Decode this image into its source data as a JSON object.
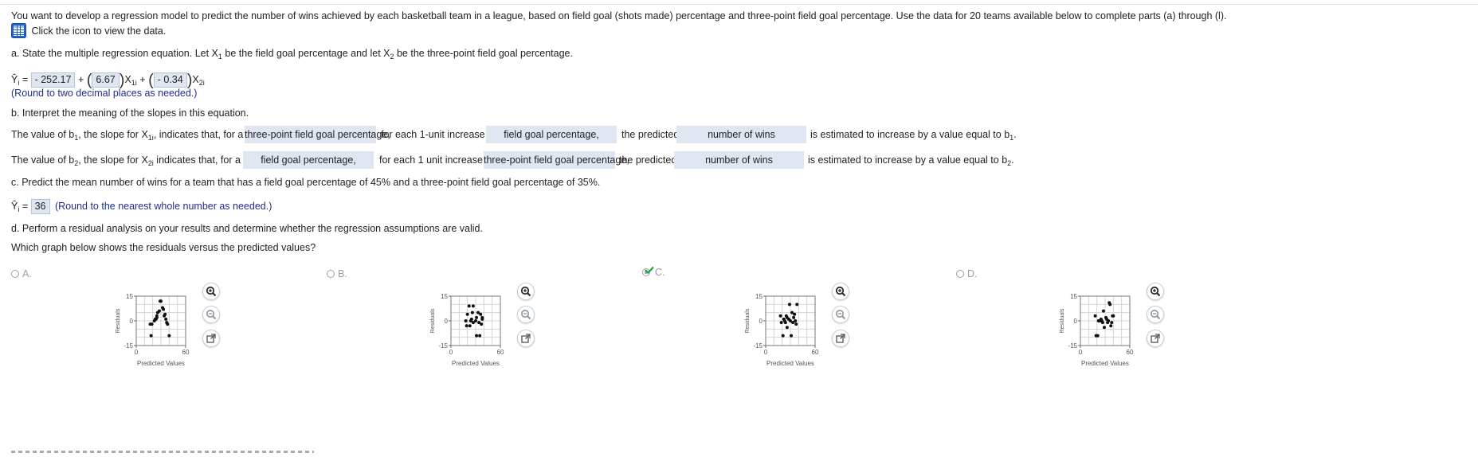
{
  "problem": {
    "intro": "You want to develop a regression model to predict the number of wins achieved by each basketball team in a league, based on field goal (shots made) percentage and three-point field goal percentage. Use the data for 20 teams available below to complete parts (a) through (l).",
    "data_link": "Click the icon to view the data."
  },
  "part_a": {
    "prompt_pre": "a. State the multiple regression equation. Let X",
    "prompt_mid": " be the field goal percentage and let X",
    "prompt_post": " be the three-point field goal percentage.",
    "sub1": "1",
    "sub2": "2",
    "eq_lhs": "Ŷ",
    "eq_i": "i",
    "eq_eq": " = ",
    "b0": "- 252.17",
    "b1": "6.67",
    "b2": "- 0.34",
    "x1": "X",
    "x1_sub": "1i",
    "x2": "X",
    "x2_sub": "2i",
    "plus": "+",
    "round_note": "(Round to two decimal places as needed.)"
  },
  "part_b": {
    "prompt": "b. Interpret the meaning of the slopes in this equation.",
    "row1": {
      "t1": "The value of b",
      "t1_sub": "1",
      "t2": ", the slope for X",
      "t2_sub": "1i",
      "t3": ", indicates that, for a given",
      "dd1": "three-point field goal percentage,",
      "t4": "for each 1-unit increase in",
      "dd2": "field goal percentage,",
      "t5": "the predicted",
      "dd3": "number of wins",
      "t6": "is estimated to increase by a value equal to b",
      "t6_sub": "1",
      "t7": "."
    },
    "row2": {
      "t1": "The value of b",
      "t1_sub": "2",
      "t2": ", the slope for X",
      "t2_sub": "2i",
      "t3": " indicates that, for a given",
      "dd1": "field goal percentage,",
      "t4": "for each 1 unit increase in",
      "dd2": "three-point field goal percentage,",
      "t5": "the predicted",
      "dd3": "number of wins",
      "t6": "is estimated to increase by a value equal to b",
      "t6_sub": "2",
      "t7": "."
    }
  },
  "part_c": {
    "prompt": "c. Predict the mean number of wins for a team that has a field goal percentage of 45% and a three-point field goal percentage of 35%.",
    "lhs": "Ŷ",
    "lhs_sub": "i",
    "eq": " = ",
    "answer": "36",
    "note": "(Round to the nearest whole number as needed.)"
  },
  "part_d": {
    "prompt": "d. Perform a residual analysis on your results and determine whether the regression assumptions are valid.",
    "question": "Which graph below shows the residuals versus the predicted values?",
    "selected": "C",
    "options": [
      {
        "label": "A."
      },
      {
        "label": "B."
      },
      {
        "label": "C."
      },
      {
        "label": "D."
      }
    ]
  },
  "chart_data": [
    {
      "type": "scatter",
      "option": "A",
      "xlabel": "Predicted Values",
      "ylabel": "Residuals",
      "xlim": [
        0,
        60
      ],
      "ylim": [
        -15,
        15
      ],
      "x_ticks": [
        "0",
        "60"
      ],
      "y_ticks": [
        "15",
        "0",
        "-15"
      ],
      "grid": true,
      "points": [
        [
          17,
          -2
        ],
        [
          18,
          -9
        ],
        [
          19,
          -2
        ],
        [
          22,
          0
        ],
        [
          23,
          1
        ],
        [
          24,
          1
        ],
        [
          25,
          3
        ],
        [
          26,
          5
        ],
        [
          28,
          6
        ],
        [
          29,
          12
        ],
        [
          30,
          12
        ],
        [
          32,
          8
        ],
        [
          33,
          7
        ],
        [
          34,
          3
        ],
        [
          35,
          4
        ],
        [
          36,
          1
        ],
        [
          37,
          -1
        ],
        [
          38,
          -2
        ],
        [
          40,
          -9
        ],
        [
          25,
          2
        ]
      ]
    },
    {
      "type": "scatter",
      "option": "B",
      "xlabel": "Predicted Values",
      "ylabel": "Residuals",
      "xlim": [
        0,
        60
      ],
      "ylim": [
        -15,
        15
      ],
      "x_ticks": [
        "0",
        "60"
      ],
      "y_ticks": [
        "15",
        "0",
        "-15"
      ],
      "grid": true,
      "points": [
        [
          18,
          0
        ],
        [
          19,
          -3
        ],
        [
          20,
          4
        ],
        [
          22,
          9
        ],
        [
          23,
          -3
        ],
        [
          24,
          0
        ],
        [
          25,
          1
        ],
        [
          26,
          5
        ],
        [
          27,
          9
        ],
        [
          27,
          -1
        ],
        [
          30,
          0
        ],
        [
          31,
          2
        ],
        [
          31,
          -9
        ],
        [
          33,
          5
        ],
        [
          34,
          -1
        ],
        [
          35,
          -9
        ],
        [
          36,
          4
        ],
        [
          37,
          -2
        ],
        [
          38,
          1
        ],
        [
          38,
          2
        ]
      ]
    },
    {
      "type": "scatter",
      "option": "C",
      "xlabel": "Predicted Values",
      "ylabel": "Residuals",
      "xlim": [
        0,
        60
      ],
      "ylim": [
        -15,
        15
      ],
      "x_ticks": [
        "0",
        "60"
      ],
      "y_ticks": [
        "15",
        "0",
        "-15"
      ],
      "grid": true,
      "points": [
        [
          18,
          3
        ],
        [
          19,
          -1
        ],
        [
          21,
          -9
        ],
        [
          22,
          1
        ],
        [
          23,
          0
        ],
        [
          24,
          -1
        ],
        [
          25,
          3
        ],
        [
          26,
          2
        ],
        [
          26,
          -4
        ],
        [
          28,
          1
        ],
        [
          29,
          10
        ],
        [
          30,
          0
        ],
        [
          31,
          -9
        ],
        [
          32,
          5
        ],
        [
          33,
          -1
        ],
        [
          34,
          2
        ],
        [
          35,
          4
        ],
        [
          36,
          0
        ],
        [
          37,
          -2
        ],
        [
          38,
          10
        ]
      ]
    },
    {
      "type": "scatter",
      "option": "D",
      "xlabel": "Predicted Values",
      "ylabel": "Residuals",
      "xlim": [
        0,
        60
      ],
      "ylim": [
        -15,
        15
      ],
      "x_ticks": [
        "0",
        "60"
      ],
      "y_ticks": [
        "15",
        "0",
        "-15"
      ],
      "grid": true,
      "points": [
        [
          18,
          3
        ],
        [
          19,
          -9
        ],
        [
          21,
          -9
        ],
        [
          22,
          0
        ],
        [
          24,
          0
        ],
        [
          25,
          1
        ],
        [
          26,
          0
        ],
        [
          27,
          -1
        ],
        [
          28,
          6
        ],
        [
          29,
          -4
        ],
        [
          31,
          2
        ],
        [
          32,
          1
        ],
        [
          33,
          -1
        ],
        [
          34,
          0
        ],
        [
          35,
          11
        ],
        [
          36,
          10
        ],
        [
          37,
          -3
        ],
        [
          38,
          -1
        ],
        [
          39,
          3
        ],
        [
          40,
          3
        ]
      ]
    }
  ]
}
